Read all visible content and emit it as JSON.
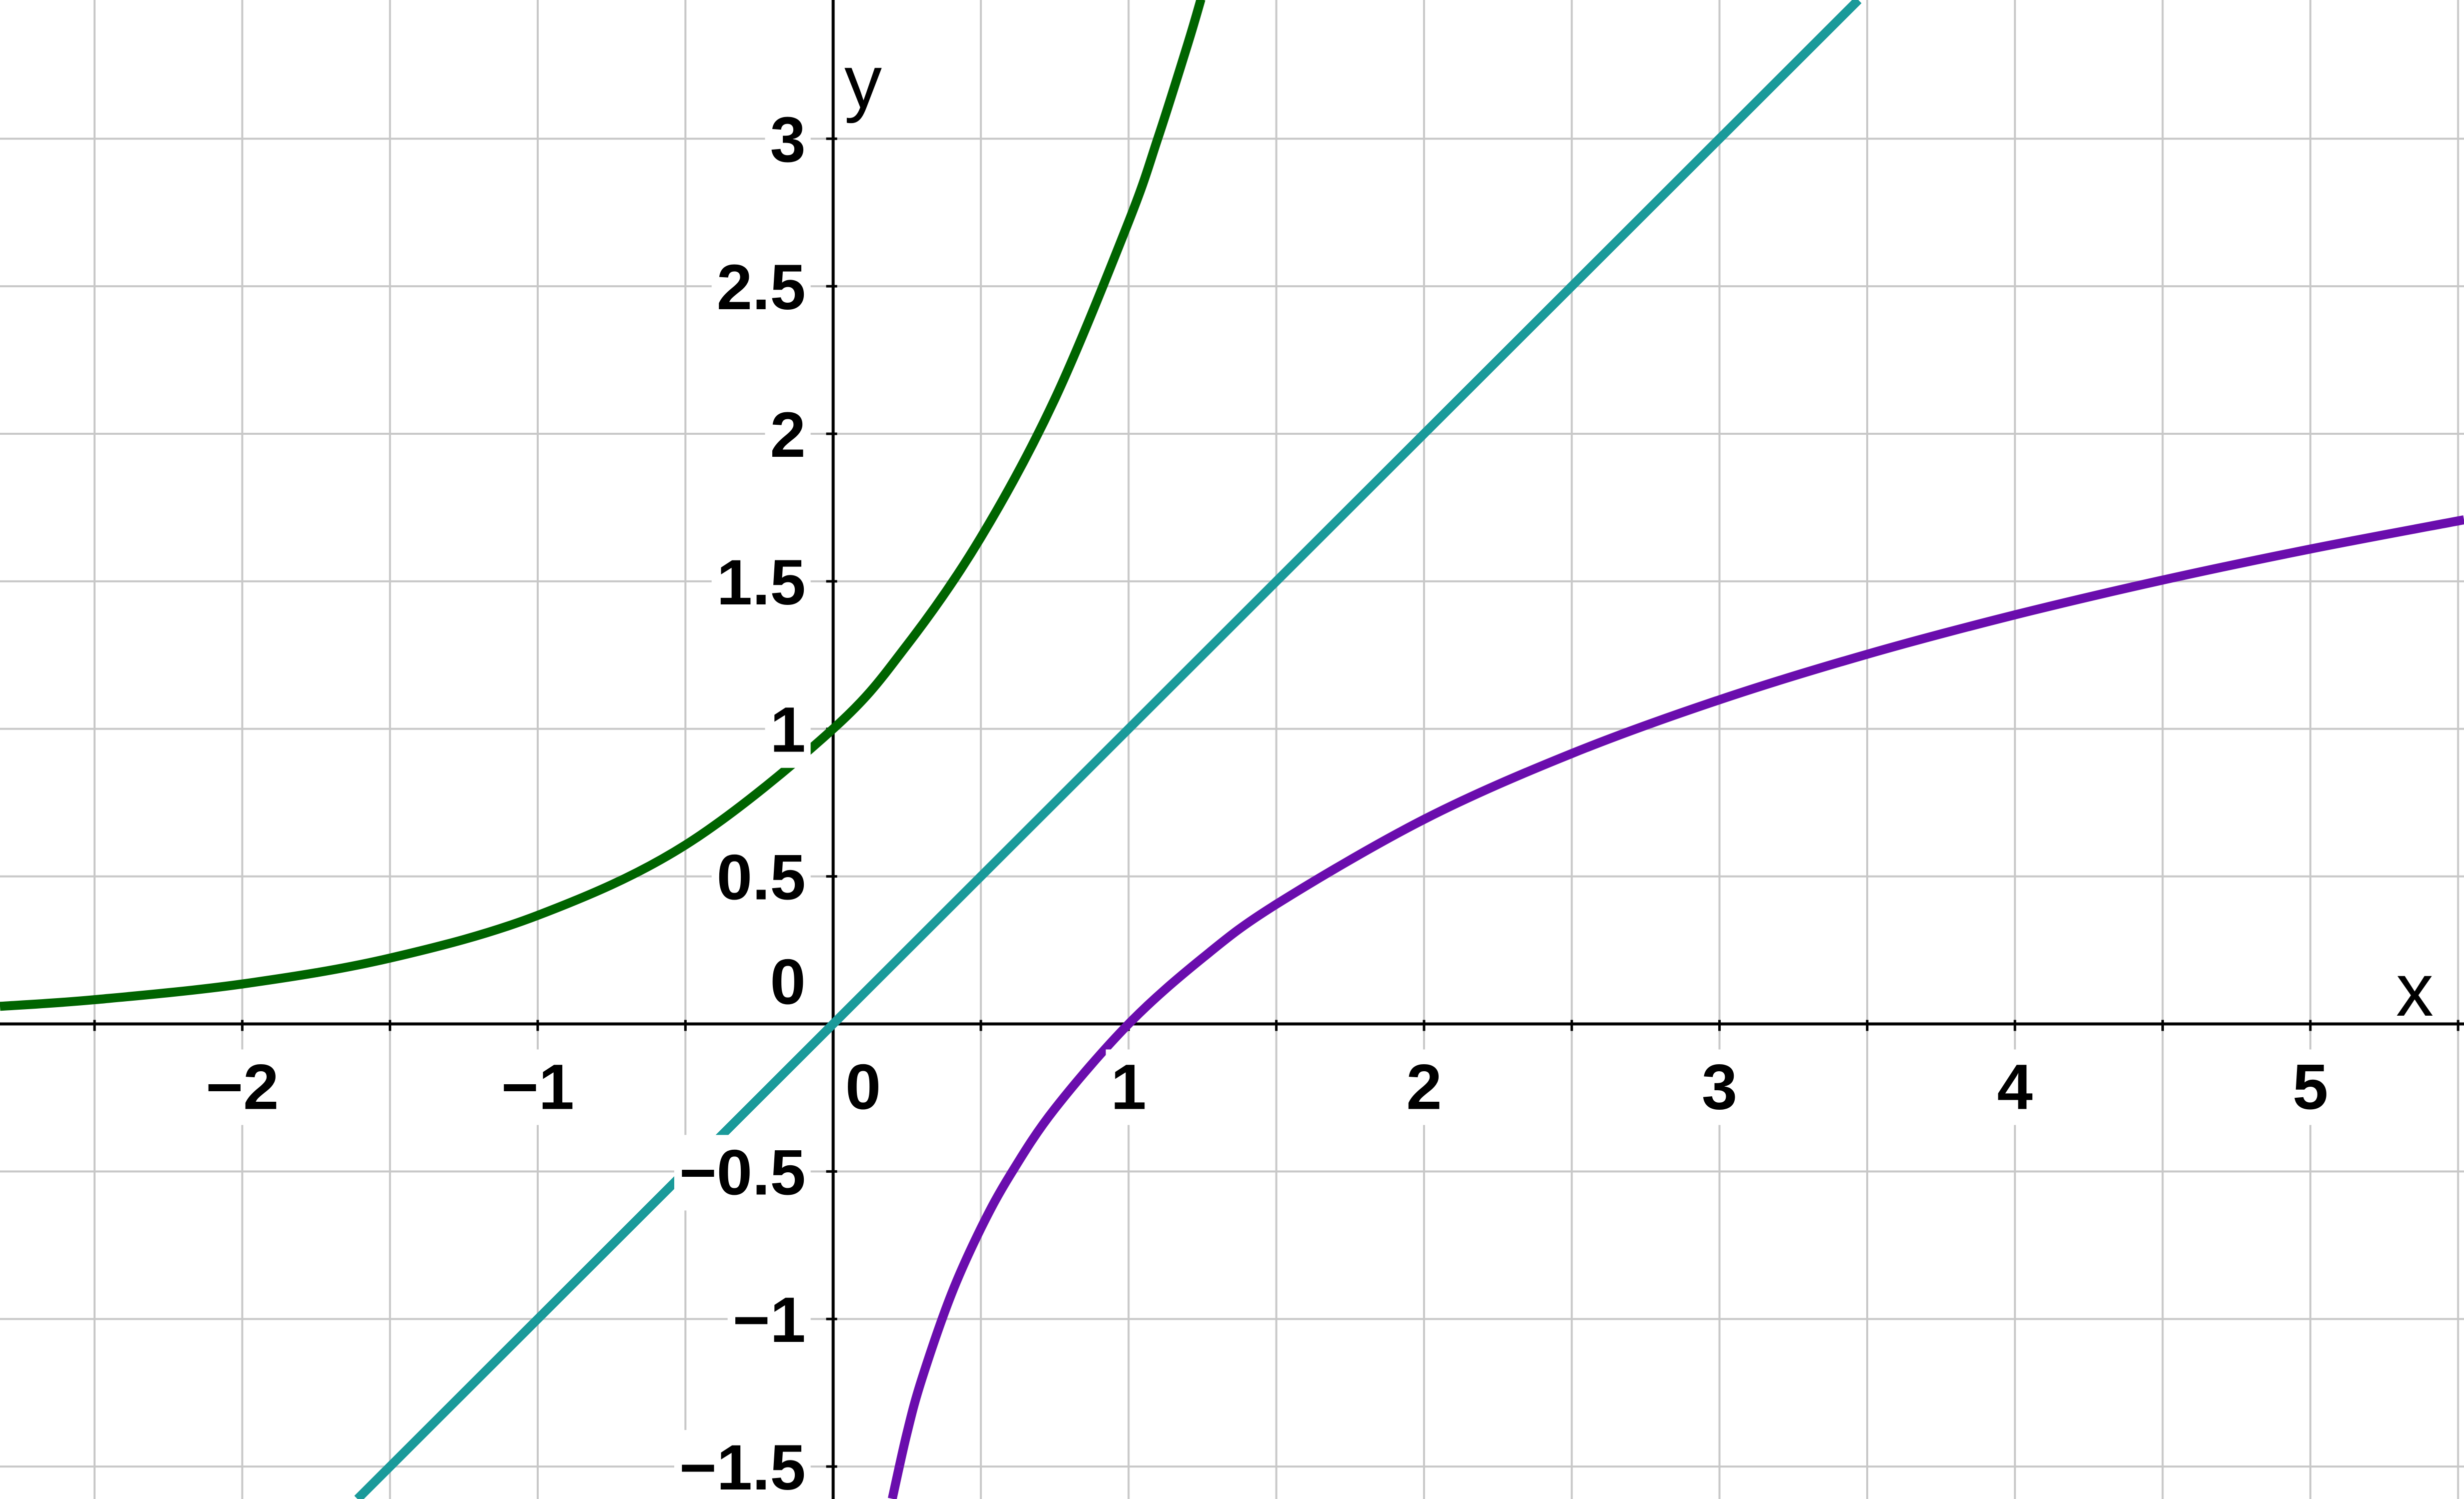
{
  "chart_data": {
    "type": "line",
    "xlim": [
      -2.82,
      5.52
    ],
    "ylim": [
      -1.61,
      3.47
    ],
    "grid": true,
    "x_grid_step": 0.5,
    "y_grid_step": 0.5,
    "xlabel": "x",
    "ylabel": "y",
    "x_ticks": [
      {
        "value": -2,
        "label": "−2"
      },
      {
        "value": -1,
        "label": "−1"
      },
      {
        "value": 0,
        "label": "0"
      },
      {
        "value": 1,
        "label": "1"
      },
      {
        "value": 2,
        "label": "2"
      },
      {
        "value": 3,
        "label": "3"
      },
      {
        "value": 4,
        "label": "4"
      },
      {
        "value": 5,
        "label": "5"
      }
    ],
    "y_ticks": [
      {
        "value": -1.5,
        "label": "−1.5"
      },
      {
        "value": -1,
        "label": "−1"
      },
      {
        "value": -0.5,
        "label": "−0.5"
      },
      {
        "value": 0,
        "label": "0"
      },
      {
        "value": 0.5,
        "label": "0.5"
      },
      {
        "value": 1,
        "label": "1"
      },
      {
        "value": 1.5,
        "label": "1.5"
      },
      {
        "value": 2,
        "label": "2"
      },
      {
        "value": 2.5,
        "label": "2.5"
      },
      {
        "value": 3,
        "label": "3"
      }
    ],
    "series": [
      {
        "color": "#006400",
        "x": [
          -2.82,
          -2.5,
          -2,
          -1.5,
          -1,
          -0.5,
          0,
          0.25,
          0.5,
          0.75,
          1,
          1.1,
          1.2,
          1.245
        ],
        "y": [
          0.0596,
          0.0821,
          0.1353,
          0.2231,
          0.3679,
          0.6065,
          1.0,
          1.284,
          1.6487,
          2.117,
          2.7183,
          3.0042,
          3.3201,
          3.4729
        ]
      },
      {
        "color": "#1a9a9a",
        "x": [
          -1.61,
          3.47
        ],
        "y": [
          -1.61,
          3.47
        ]
      },
      {
        "color": "#6a0dad",
        "x": [
          0.2,
          0.25,
          0.3,
          0.4,
          0.5,
          0.6,
          0.75,
          1,
          1.25,
          1.5,
          2,
          2.5,
          3,
          3.5,
          4,
          4.5,
          5,
          5.52
        ],
        "y": [
          -1.6094,
          -1.3863,
          -1.204,
          -0.9163,
          -0.6931,
          -0.5108,
          -0.2877,
          0.0,
          0.2231,
          0.4055,
          0.6931,
          0.9163,
          1.0986,
          1.2528,
          1.3863,
          1.5041,
          1.6094,
          1.7084
        ]
      }
    ]
  }
}
